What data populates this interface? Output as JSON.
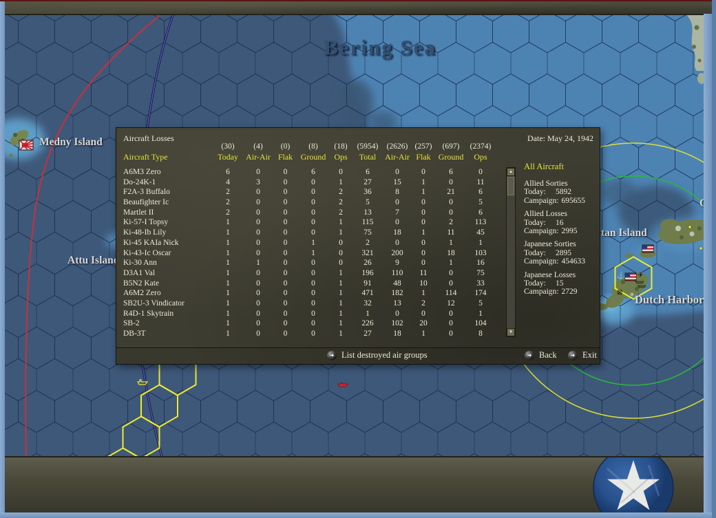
{
  "dialog": {
    "title": "Aircraft Losses",
    "date": "Date: May 24, 1942",
    "table": {
      "type_header": "Aircraft Type",
      "columns": [
        {
          "count": "(30)",
          "label": "Today"
        },
        {
          "count": "(4)",
          "label": "Air-Air"
        },
        {
          "count": "(0)",
          "label": "Flak"
        },
        {
          "count": "(8)",
          "label": "Ground"
        },
        {
          "count": "(18)",
          "label": "Ops"
        },
        {
          "count": "(5954)",
          "label": "Total"
        },
        {
          "count": "(2626)",
          "label": "Air-Air"
        },
        {
          "count": "(257)",
          "label": "Flak"
        },
        {
          "count": "(697)",
          "label": "Ground"
        },
        {
          "count": "(2374)",
          "label": "Ops"
        }
      ],
      "rows": [
        {
          "type": "A6M3 Zero",
          "values": [
            "6",
            "0",
            "0",
            "6",
            "0",
            "6",
            "0",
            "0",
            "6",
            "0"
          ]
        },
        {
          "type": "Do-24K-1",
          "values": [
            "4",
            "3",
            "0",
            "0",
            "1",
            "27",
            "15",
            "1",
            "0",
            "11"
          ]
        },
        {
          "type": "F2A-3 Buffalo",
          "values": [
            "2",
            "0",
            "0",
            "0",
            "2",
            "36",
            "8",
            "1",
            "21",
            "6"
          ]
        },
        {
          "type": "Beaufighter Ic",
          "values": [
            "2",
            "0",
            "0",
            "0",
            "2",
            "5",
            "0",
            "0",
            "0",
            "5"
          ]
        },
        {
          "type": "Martlet II",
          "values": [
            "2",
            "0",
            "0",
            "0",
            "2",
            "13",
            "7",
            "0",
            "0",
            "6"
          ]
        },
        {
          "type": "Ki-57-I Topsy",
          "values": [
            "1",
            "0",
            "0",
            "0",
            "1",
            "115",
            "0",
            "0",
            "2",
            "113"
          ]
        },
        {
          "type": "Ki-48-Ib Lily",
          "values": [
            "1",
            "0",
            "0",
            "0",
            "1",
            "75",
            "18",
            "1",
            "11",
            "45"
          ]
        },
        {
          "type": "Ki-45 KAIa Nick",
          "values": [
            "1",
            "0",
            "0",
            "1",
            "0",
            "2",
            "0",
            "0",
            "1",
            "1"
          ]
        },
        {
          "type": "Ki-43-Ic Oscar",
          "values": [
            "1",
            "0",
            "0",
            "1",
            "0",
            "321",
            "200",
            "0",
            "18",
            "103"
          ]
        },
        {
          "type": "Ki-30 Ann",
          "values": [
            "1",
            "1",
            "0",
            "0",
            "0",
            "26",
            "9",
            "0",
            "1",
            "16"
          ]
        },
        {
          "type": "D3A1 Val",
          "values": [
            "1",
            "0",
            "0",
            "0",
            "1",
            "196",
            "110",
            "11",
            "0",
            "75"
          ]
        },
        {
          "type": "B5N2 Kate",
          "values": [
            "1",
            "0",
            "0",
            "0",
            "1",
            "91",
            "48",
            "10",
            "0",
            "33"
          ]
        },
        {
          "type": "A6M2 Zero",
          "values": [
            "1",
            "0",
            "0",
            "0",
            "1",
            "471",
            "182",
            "1",
            "114",
            "174"
          ]
        },
        {
          "type": "SB2U-3 Vindicator",
          "values": [
            "1",
            "0",
            "0",
            "0",
            "1",
            "32",
            "13",
            "2",
            "12",
            "5"
          ]
        },
        {
          "type": "R4D-1 Skytrain",
          "values": [
            "1",
            "0",
            "0",
            "0",
            "1",
            "1",
            "0",
            "0",
            "0",
            "1"
          ]
        },
        {
          "type": "SB-2",
          "values": [
            "1",
            "0",
            "0",
            "0",
            "1",
            "226",
            "102",
            "20",
            "0",
            "104"
          ]
        },
        {
          "type": "DB-3T",
          "values": [
            "1",
            "0",
            "0",
            "0",
            "1",
            "27",
            "18",
            "1",
            "0",
            "8"
          ]
        }
      ]
    },
    "summary": {
      "title": "All Aircraft",
      "today_label": "Today:",
      "campaign_label": "Campaign:",
      "groups": [
        {
          "label": "Allied Sorties",
          "today": "5892",
          "campaign": "695655"
        },
        {
          "label": "Allied Losses",
          "today": "16",
          "campaign": "2995"
        },
        {
          "label": "Japanese Sorties",
          "today": "2895",
          "campaign": "454633"
        },
        {
          "label": "Japanese Losses",
          "today": "15",
          "campaign": "2729"
        }
      ]
    },
    "footer": {
      "list_destroyed": "List destroyed air groups",
      "back": "Back",
      "exit": "Exit"
    }
  },
  "map": {
    "labels": {
      "sea": "Bering Sea",
      "medny": "Medny Island",
      "attu": "Attu Island",
      "akutan_partial": "tan Island",
      "dutch_harbor": "Dutch Harbor",
      "cut_label": "C"
    },
    "colors": {
      "sea_dark": "#3e587a",
      "sea_light": "#4d83b3",
      "hex_line": "#16294a",
      "range_ring_yellow": "#e3e32e",
      "range_ring_green": "#28b93c",
      "route_red": "#c8303c",
      "route_blue": "#5b5bd6",
      "selection_yellow": "#ecec2a"
    }
  },
  "icons": {
    "up": "▲",
    "down": "▼",
    "button_arrow": "➜",
    "anchor": "⚓",
    "plane": "✈",
    "box_x": "⊠"
  }
}
